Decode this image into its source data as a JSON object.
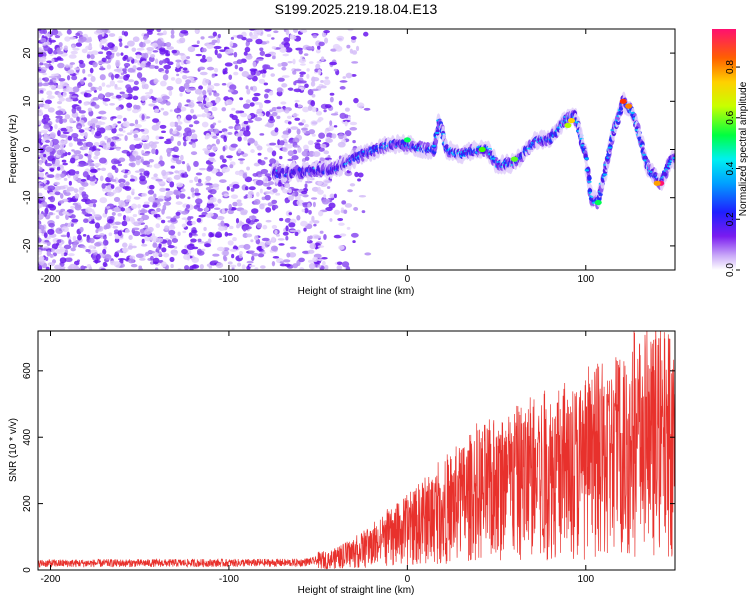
{
  "title": "S199.2025.219.18.04.E13",
  "chart_data": [
    {
      "type": "heatmap",
      "xlabel": "Height of straight line (km)",
      "ylabel": "Frequency (Hz)",
      "xlim": [
        -207,
        150
      ],
      "ylim": [
        -25,
        25
      ],
      "xticks": [
        -200,
        -100,
        0,
        100
      ],
      "yticks": [
        -20,
        -10,
        0,
        10,
        20
      ],
      "colorbar": {
        "label": "Normalized spectral amplitude",
        "range": [
          0,
          0.95
        ],
        "ticks": [
          "0.0",
          "0.2",
          "0.4",
          "0.6",
          "0.8"
        ]
      },
      "ridge": {
        "description_points": [
          [
            -70,
            -5
          ],
          [
            -40,
            -4
          ],
          [
            -25,
            -1
          ],
          [
            -10,
            1
          ],
          [
            0,
            1
          ],
          [
            10,
            0
          ],
          [
            15,
            0
          ],
          [
            18,
            6
          ],
          [
            22,
            0
          ],
          [
            30,
            -1
          ],
          [
            40,
            0
          ],
          [
            45,
            0
          ],
          [
            50,
            -3
          ],
          [
            58,
            -3
          ],
          [
            65,
            -1
          ],
          [
            72,
            2
          ],
          [
            80,
            2
          ],
          [
            88,
            6
          ],
          [
            94,
            7
          ],
          [
            100,
            -1
          ],
          [
            103,
            -10
          ],
          [
            107,
            -11
          ],
          [
            115,
            3
          ],
          [
            121,
            10
          ],
          [
            126,
            8
          ],
          [
            135,
            -4
          ],
          [
            142,
            -7
          ],
          [
            148,
            -2
          ]
        ]
      },
      "noise_region_km": [
        -207,
        -40
      ]
    },
    {
      "type": "line",
      "xlabel": "Height of straight line (km)",
      "ylabel": "SNR (10 * v/v)",
      "xlim": [
        -207,
        150
      ],
      "ylim": [
        0,
        720
      ],
      "xticks": [
        -200,
        -100,
        0,
        100
      ],
      "yticks": [
        0,
        200,
        400,
        600
      ],
      "color": "#e8312c",
      "trend": [
        [
          -207,
          20
        ],
        [
          -60,
          22
        ],
        [
          -40,
          35
        ],
        [
          -20,
          70
        ],
        [
          0,
          120
        ],
        [
          20,
          180
        ],
        [
          40,
          230
        ],
        [
          60,
          260
        ],
        [
          80,
          290
        ],
        [
          100,
          310
        ],
        [
          120,
          350
        ],
        [
          150,
          390
        ]
      ],
      "peak": [
        127,
        720
      ]
    }
  ],
  "colors": {
    "line": "#e8312c",
    "grid": "#000000"
  }
}
